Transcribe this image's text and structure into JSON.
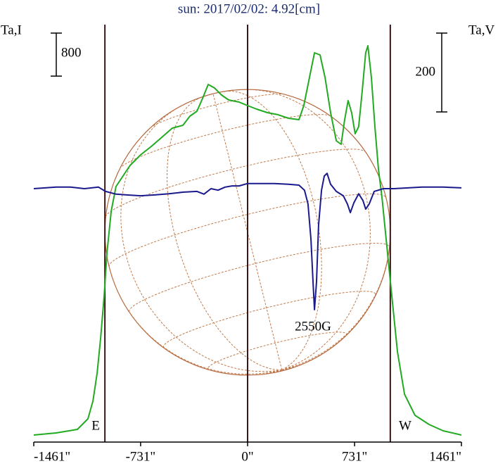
{
  "chart_data": {
    "type": "line",
    "title": "sun: 2017/02/02: 4.92[cm]",
    "ylabel": "Ta,I",
    "y2label": "Ta,V",
    "annotations": [
      "2550G",
      "E",
      "W"
    ],
    "xlim": [
      -1461,
      1461
    ],
    "xticks": [
      {
        "value": -1461,
        "label": "-1461\""
      },
      {
        "value": -731,
        "label": "-731\""
      },
      {
        "value": 0,
        "label": "0\""
      },
      {
        "value": 731,
        "label": "731\""
      },
      {
        "value": 1461,
        "label": "1461\""
      }
    ],
    "ylim": [
      0,
      7899
    ],
    "y2lim": [
      -643,
      434
    ],
    "scale_bars": {
      "y": 800,
      "y2": 200
    },
    "vlines": [
      -975,
      0,
      975
    ],
    "series": [
      {
        "color": "#22aa22",
        "axis": "y",
        "x": [
          -1461,
          -1307,
          -1163,
          -1091,
          -1057,
          -1028,
          -1004,
          -980,
          -961,
          -932,
          -899,
          -851,
          -803,
          -731,
          -658,
          -586,
          -514,
          -442,
          -394,
          -346,
          -308,
          -269,
          -226,
          -178,
          -130,
          -58,
          0,
          62,
          135,
          207,
          279,
          351,
          384,
          423,
          457,
          495,
          529,
          567,
          606,
          639,
          663,
          687,
          711,
          735,
          759,
          783,
          807,
          822,
          846,
          870,
          894,
          918,
          942,
          966,
          990,
          1024,
          1072,
          1144,
          1240,
          1336,
          1461
        ],
        "values": [
          131,
          170,
          236,
          432,
          760,
          1284,
          1939,
          2725,
          3511,
          4297,
          4755,
          4952,
          5148,
          5345,
          5502,
          5672,
          5843,
          5895,
          6065,
          6157,
          6393,
          6655,
          6589,
          6458,
          6367,
          6327,
          6262,
          6196,
          6131,
          6092,
          6026,
          6000,
          6262,
          6786,
          7244,
          7205,
          6786,
          6131,
          5607,
          5541,
          6000,
          6354,
          6131,
          5738,
          5869,
          6524,
          7244,
          7375,
          6786,
          5869,
          5083,
          4559,
          3904,
          3249,
          2594,
          1677,
          891,
          498,
          328,
          210,
          131
        ]
      },
      {
        "color": "#1a1a8c",
        "axis": "y2",
        "x": [
          -1461,
          -1307,
          -1211,
          -1115,
          -1019,
          -971,
          -899,
          -827,
          -731,
          -634,
          -538,
          -442,
          -346,
          -298,
          -250,
          -202,
          -154,
          -106,
          -58,
          0,
          87,
          183,
          279,
          351,
          389,
          413,
          433,
          447,
          457,
          471,
          485,
          505,
          524,
          543,
          567,
          606,
          654,
          682,
          702,
          726,
          759,
          788,
          807,
          831,
          865,
          928,
          1000,
          1096,
          1192,
          1336,
          1461
        ],
        "values": [
          0,
          4,
          4,
          0,
          4,
          -7,
          -14,
          -16,
          -18,
          -16,
          -13,
          -9,
          -7,
          -14,
          0,
          -4,
          4,
          7,
          7,
          13,
          13,
          13,
          11,
          9,
          -4,
          -39,
          -129,
          -236,
          -307,
          -236,
          -93,
          -4,
          32,
          39,
          11,
          -7,
          -18,
          -39,
          -61,
          -36,
          -13,
          -30,
          -52,
          -39,
          -7,
          0,
          0,
          2,
          4,
          4,
          2
        ]
      }
    ]
  }
}
